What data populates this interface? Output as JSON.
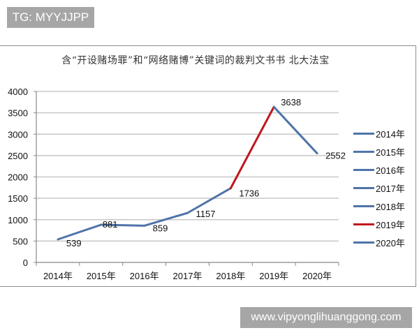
{
  "watermarks": {
    "top_left": "TG: MYYJJPP",
    "bottom_right": "www.vipyonglihuanggong.com"
  },
  "colors": {
    "line_blue": "#4f74a8",
    "line_red": "#c0161c",
    "grid": "#c8c8c8",
    "watermark_bg": "#a6a6a6"
  },
  "chart_data": {
    "type": "line",
    "title": "含“开设赌场罪”和“网络赌博”关键词的裁判文书书 北大法宝",
    "xlabel": "",
    "ylabel": "",
    "categories": [
      "2014年",
      "2015年",
      "2016年",
      "2017年",
      "2018年",
      "2019年",
      "2020年"
    ],
    "values": [
      539,
      881,
      859,
      1157,
      1736,
      3638,
      2552
    ],
    "data_labels": [
      "539",
      "881",
      "859",
      "1157",
      "1736",
      "3638",
      "2552"
    ],
    "segment_colors": [
      "#4f74a8",
      "#4f74a8",
      "#4f74a8",
      "#4f74a8",
      "#c0161c",
      "#4f74a8"
    ],
    "ylim": [
      0,
      4000
    ],
    "yticks": [
      "0",
      "500",
      "1000",
      "1500",
      "2000",
      "2500",
      "3000",
      "3500",
      "4000"
    ],
    "grid": true,
    "legend_position": "right",
    "legend": [
      {
        "label": "2014年",
        "color": "#4f74a8"
      },
      {
        "label": "2015年",
        "color": "#4f74a8"
      },
      {
        "label": "2016年",
        "color": "#4f74a8"
      },
      {
        "label": "2017年",
        "color": "#4f74a8"
      },
      {
        "label": "2018年",
        "color": "#4f74a8"
      },
      {
        "label": "2019年",
        "color": "#c0161c"
      },
      {
        "label": "2020年",
        "color": "#4f74a8"
      }
    ]
  }
}
